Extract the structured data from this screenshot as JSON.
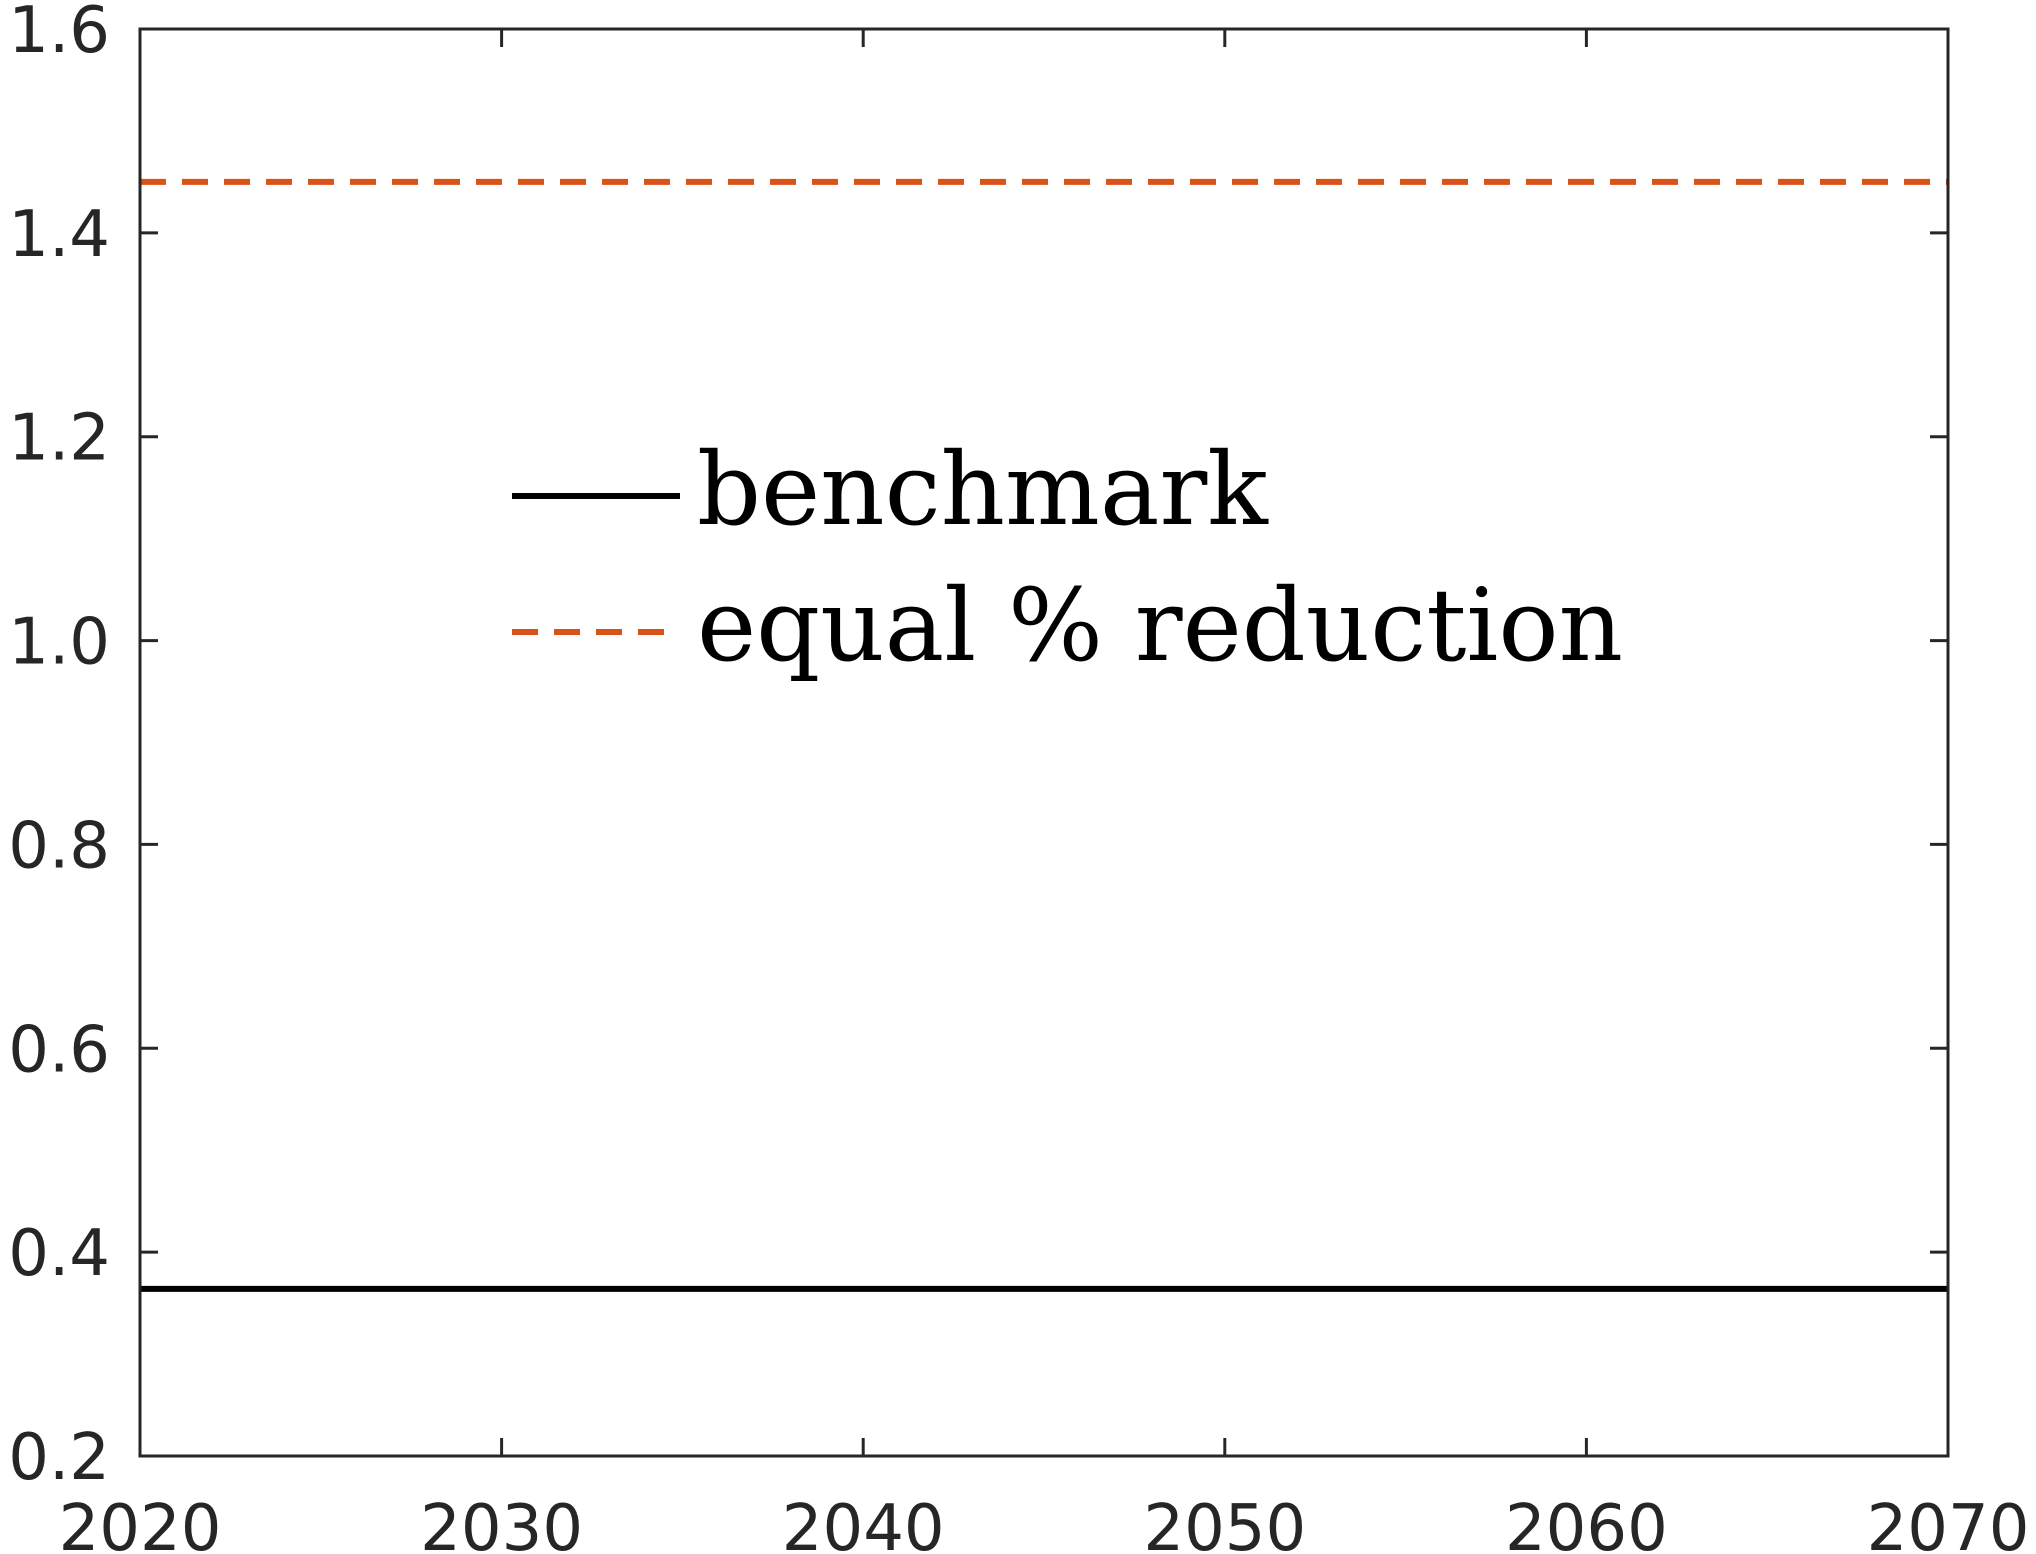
{
  "chart_data": {
    "type": "line",
    "title": "",
    "xlabel": "",
    "ylabel": "",
    "xlim": [
      2020,
      2070
    ],
    "ylim": [
      0.2,
      1.6
    ],
    "x_ticks": [
      2020,
      2030,
      2040,
      2050,
      2060,
      2070
    ],
    "x_tick_labels": [
      "2020",
      "2030",
      "2040",
      "2050",
      "2060",
      "2070"
    ],
    "y_ticks": [
      0.2,
      0.4,
      0.6,
      0.8,
      1.0,
      1.2,
      1.4,
      1.6
    ],
    "y_tick_labels": [
      "0.2",
      "0.4",
      "0.6",
      "0.8",
      "1.0",
      "1.2",
      "1.4",
      "1.6"
    ],
    "grid": false,
    "legend_position": "upper-center",
    "series": [
      {
        "name": "benchmark",
        "style": "solid",
        "color": "#000000",
        "x": [
          2020,
          2070
        ],
        "y": [
          0.364,
          0.364
        ]
      },
      {
        "name": "equal % reduction",
        "style": "dashed",
        "color": "#D95319",
        "x": [
          2020,
          2070
        ],
        "y": [
          1.45,
          1.45
        ]
      }
    ]
  }
}
